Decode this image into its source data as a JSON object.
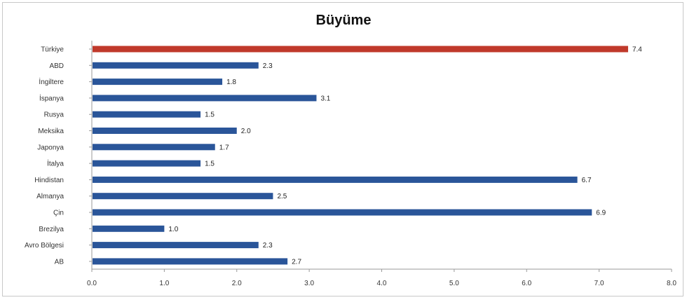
{
  "chart_data": {
    "type": "bar",
    "orientation": "horizontal",
    "title": "Büyüme",
    "categories": [
      "Türkiye",
      "ABD",
      "İngiltere",
      "İspanya",
      "Rusya",
      "Meksika",
      "Japonya",
      "İtalya",
      "Hindistan",
      "Almanya",
      "Çin",
      "Brezilya",
      "Avro Bölgesi",
      "AB"
    ],
    "values": [
      7.4,
      2.3,
      1.8,
      3.1,
      1.5,
      2.0,
      1.7,
      1.5,
      6.7,
      2.5,
      6.9,
      1.0,
      2.3,
      2.7
    ],
    "value_labels": [
      "7.4",
      "2.3",
      "1.8",
      "3.1",
      "1.5",
      "2.0",
      "1.7",
      "1.5",
      "6.7",
      "2.5",
      "6.9",
      "1.0",
      "2.3",
      "2.7"
    ],
    "xlim": [
      0,
      8
    ],
    "xticks": [
      "0.0",
      "1.0",
      "2.0",
      "3.0",
      "4.0",
      "5.0",
      "6.0",
      "7.0",
      "8.0"
    ],
    "highlight_color": "#c0392b",
    "bar_color": "#2a5599",
    "grid": false,
    "legend": "none"
  }
}
